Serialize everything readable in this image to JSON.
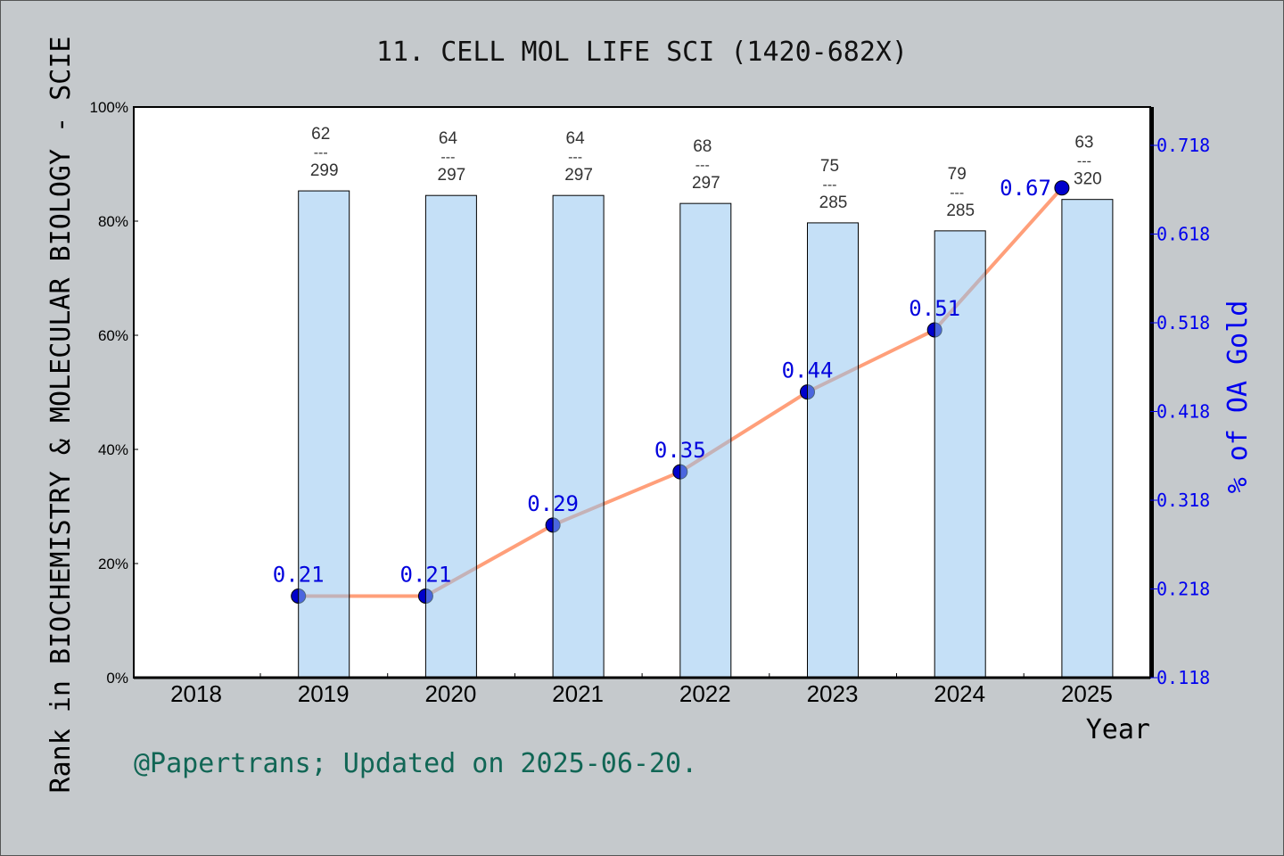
{
  "chart_data": {
    "type": "bar+line",
    "title": "11. CELL MOL LIFE SCI (1420-682X)",
    "xlabel": "Year",
    "ylabel_left": "Rank in BIOCHEMISTRY & MOLECULAR BIOLOGY - SCIE",
    "ylabel_right": "% of OA Gold",
    "categories": [
      "2018",
      "2019",
      "2020",
      "2021",
      "2022",
      "2023",
      "2024",
      "2025"
    ],
    "left_axis": {
      "range": [
        0,
        100
      ],
      "ticks": [
        "0%",
        "20%",
        "40%",
        "60%",
        "80%",
        "100%"
      ]
    },
    "right_axis": {
      "range": [
        0.118,
        0.718
      ],
      "ticks": [
        "0.118",
        "0.218",
        "0.318",
        "0.418",
        "0.518",
        "0.618",
        "0.718"
      ]
    },
    "bars": {
      "name": "Rank",
      "values": [
        null,
        85.3,
        84.5,
        84.5,
        83.1,
        79.7,
        78.3,
        83.8
      ],
      "labels": [
        null,
        {
          "rank": "62",
          "sep": "---",
          "total": "299"
        },
        {
          "rank": "64",
          "sep": "---",
          "total": "297"
        },
        {
          "rank": "64",
          "sep": "---",
          "total": "297"
        },
        {
          "rank": "68",
          "sep": "---",
          "total": "297"
        },
        {
          "rank": "75",
          "sep": "---",
          "total": "285"
        },
        {
          "rank": "79",
          "sep": "---",
          "total": "285"
        },
        {
          "rank": "63",
          "sep": "---",
          "total": "320"
        }
      ],
      "color": "#c5e0f7"
    },
    "line": {
      "name": "% of OA Gold",
      "values": [
        null,
        0.21,
        0.21,
        0.29,
        0.35,
        0.44,
        0.51,
        0.67
      ],
      "labels": [
        null,
        "0.21",
        "0.21",
        "0.29",
        "0.35",
        "0.44",
        "0.51",
        "0.67"
      ],
      "color": "#ff9f7a",
      "marker_color": "#0000cc"
    },
    "grid": false
  },
  "footer": "@Papertrans; Updated on 2025-06-20."
}
